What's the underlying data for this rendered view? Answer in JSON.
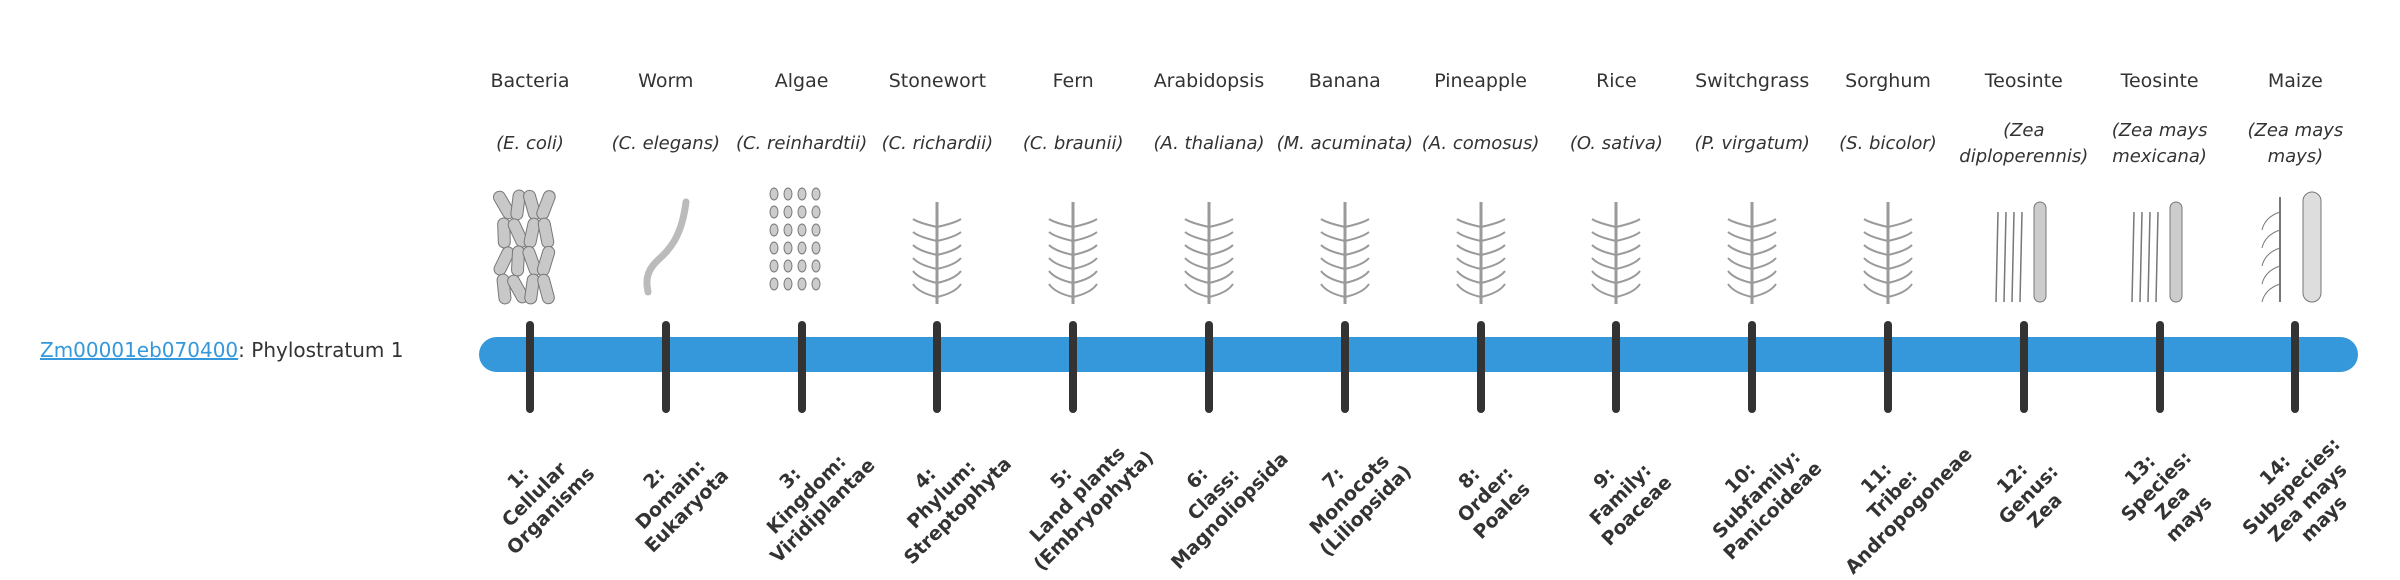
{
  "gene": {
    "id_link": "Zm00001eb070400",
    "suffix": ": Phylostratum 1"
  },
  "colors": {
    "bar": "#3498db",
    "ticks": "#333333",
    "link": "#3498db"
  },
  "strata": [
    {
      "common": "Bacteria",
      "sci": "(E. coli)",
      "icon": "bacteria-icon",
      "label": [
        "1:",
        "Cellular",
        "Organisms"
      ]
    },
    {
      "common": "Worm",
      "sci": "(C. elegans)",
      "icon": "worm-icon",
      "label": [
        "2:",
        "Domain:",
        "Eukaryota"
      ]
    },
    {
      "common": "Algae",
      "sci": "(C. reinhardtii)",
      "icon": "algae-icon",
      "label": [
        "3:",
        "Kingdom:",
        "Viridiplantae"
      ]
    },
    {
      "common": "Stonewort",
      "sci": "(C. richardii)",
      "icon": "stonewort-icon",
      "label": [
        "4:",
        "Phylum:",
        "Streptophyta"
      ]
    },
    {
      "common": "Fern",
      "sci": "(C. braunii)",
      "icon": "fern-icon",
      "label": [
        "5:",
        "Land plants",
        "(Embryophyta)"
      ]
    },
    {
      "common": "Arabidopsis",
      "sci": "(A. thaliana)",
      "icon": "arabidopsis-icon",
      "label": [
        "6:",
        "Class:",
        "Magnoliopsida"
      ]
    },
    {
      "common": "Banana",
      "sci": "(M. acuminata)",
      "icon": "banana-icon",
      "label": [
        "7:",
        "Monocots",
        "(Liliopsida)"
      ]
    },
    {
      "common": "Pineapple",
      "sci": "(A. comosus)",
      "icon": "pineapple-icon",
      "label": [
        "8:",
        "Order:",
        "Poales"
      ]
    },
    {
      "common": "Rice",
      "sci": "(O. sativa)",
      "icon": "rice-icon",
      "label": [
        "9:",
        "Family:",
        "Poaceae"
      ]
    },
    {
      "common": "Switchgrass",
      "sci": "(P. virgatum)",
      "icon": "switchgrass-icon",
      "label": [
        "10:",
        "Subfamily:",
        "Panicoideae"
      ]
    },
    {
      "common": "Sorghum",
      "sci": "(S. bicolor)",
      "icon": "sorghum-icon",
      "label": [
        "11:",
        "Tribe:",
        "Andropogoneae"
      ]
    },
    {
      "common": "Teosinte",
      "sci": "(Zea diploperennis)",
      "icon": "teosinte-icon",
      "label": [
        "12:",
        "Genus:",
        "Zea"
      ]
    },
    {
      "common": "Teosinte",
      "sci": "(Zea mays mexicana)",
      "icon": "teosinte-icon",
      "label": [
        "13:",
        "Species:",
        "Zea",
        "mays"
      ]
    },
    {
      "common": "Maize",
      "sci": "(Zea mays mays)",
      "icon": "maize-icon",
      "label": [
        "14:",
        "Subspecies:",
        "Zea mays",
        "mays"
      ]
    }
  ]
}
